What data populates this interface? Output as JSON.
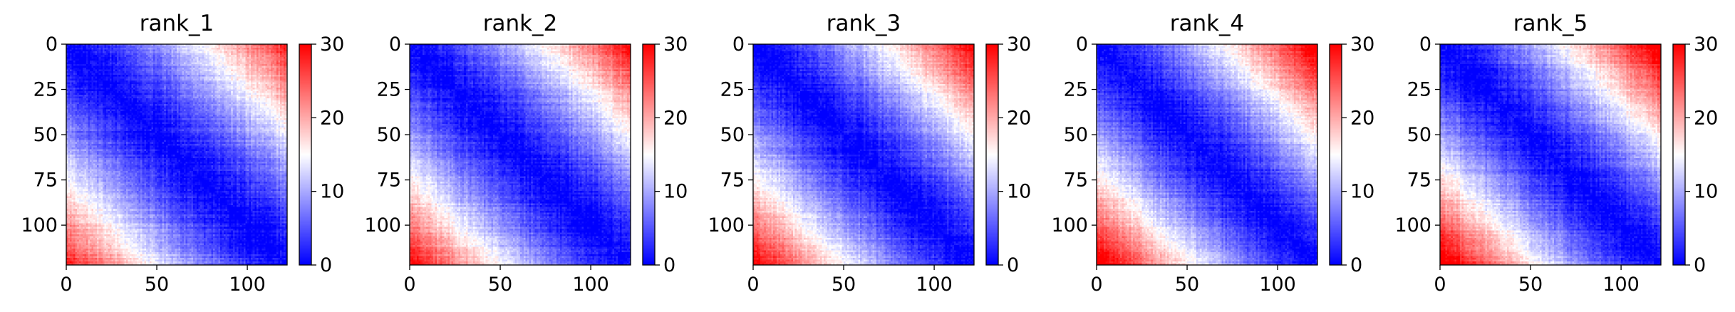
{
  "chart_data": [
    {
      "type": "heatmap",
      "title": "rank_1",
      "matrix_size": 122,
      "x_ticks": [
        0,
        50,
        100
      ],
      "y_ticks": [
        0,
        25,
        50,
        75,
        100
      ],
      "colorbar": {
        "range": [
          0,
          30
        ],
        "ticks": [
          0,
          10,
          20,
          30
        ],
        "colormap": [
          "#0000ff",
          "#ffffff",
          "#ff0000"
        ]
      },
      "description_values": {
        "diagonal": 0,
        "far_corner_max": 30
      }
    },
    {
      "type": "heatmap",
      "title": "rank_2",
      "matrix_size": 122,
      "x_ticks": [
        0,
        50,
        100
      ],
      "y_ticks": [
        0,
        25,
        50,
        75,
        100
      ],
      "colorbar": {
        "range": [
          0,
          30
        ],
        "ticks": [
          0,
          10,
          20,
          30
        ],
        "colormap": [
          "#0000ff",
          "#ffffff",
          "#ff0000"
        ]
      },
      "description_values": {
        "diagonal": 0,
        "far_corner_max": 30
      }
    },
    {
      "type": "heatmap",
      "title": "rank_3",
      "matrix_size": 122,
      "x_ticks": [
        0,
        50,
        100
      ],
      "y_ticks": [
        0,
        25,
        50,
        75,
        100
      ],
      "colorbar": {
        "range": [
          0,
          30
        ],
        "ticks": [
          0,
          10,
          20,
          30
        ],
        "colormap": [
          "#0000ff",
          "#ffffff",
          "#ff0000"
        ]
      },
      "description_values": {
        "diagonal": 0,
        "far_corner_max": 30
      }
    },
    {
      "type": "heatmap",
      "title": "rank_4",
      "matrix_size": 122,
      "x_ticks": [
        0,
        50,
        100
      ],
      "y_ticks": [
        0,
        25,
        50,
        75,
        100
      ],
      "colorbar": {
        "range": [
          0,
          30
        ],
        "ticks": [
          0,
          10,
          20,
          30
        ],
        "colormap": [
          "#0000ff",
          "#ffffff",
          "#ff0000"
        ]
      },
      "description_values": {
        "diagonal": 0,
        "far_corner_max": 30
      }
    },
    {
      "type": "heatmap",
      "title": "rank_5",
      "matrix_size": 122,
      "x_ticks": [
        0,
        50,
        100
      ],
      "y_ticks": [
        0,
        25,
        50,
        75,
        100
      ],
      "colorbar": {
        "range": [
          0,
          30
        ],
        "ticks": [
          0,
          10,
          20,
          30
        ],
        "colormap": [
          "#0000ff",
          "#ffffff",
          "#ff0000"
        ]
      },
      "description_values": {
        "diagonal": 0,
        "far_corner_max": 30
      }
    }
  ]
}
